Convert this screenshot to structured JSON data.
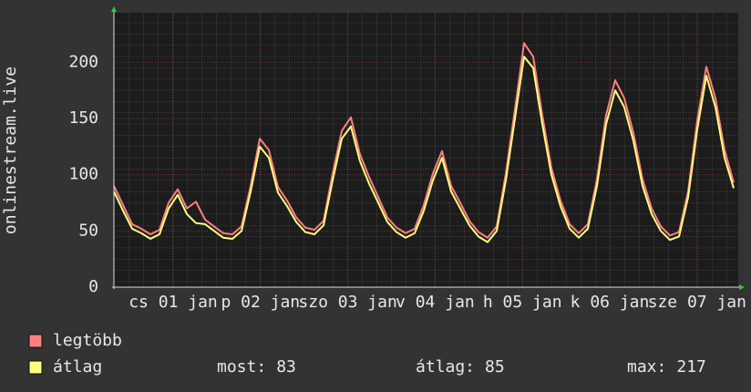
{
  "chart_data": {
    "type": "line",
    "y_label": "onlinestream.live",
    "ylim": [
      0,
      244
    ],
    "yticks": [
      0,
      50,
      100,
      150,
      200
    ],
    "xlim": [
      0,
      68.5
    ],
    "xticks": [
      {
        "value": 6.5,
        "label": "cs 01 jan"
      },
      {
        "value": 16.08,
        "label": "p 02 jan"
      },
      {
        "value": 25.66,
        "label": "szo 03 jan"
      },
      {
        "value": 35.24,
        "label": "v 04 jan"
      },
      {
        "value": 44.82,
        "label": "h 05 jan"
      },
      {
        "value": 54.4,
        "label": "k 06 jan"
      },
      {
        "value": 63.98,
        "label": "sze 07 jan"
      }
    ],
    "grid": true,
    "series": [
      {
        "name": "legtöbb",
        "color": "#ff8080",
        "values": [
          90,
          73,
          56,
          52,
          47,
          51,
          75,
          87,
          70,
          76,
          60,
          54,
          48,
          47,
          54,
          90,
          132,
          122,
          89,
          77,
          62,
          53,
          51,
          59,
          101,
          139,
          151,
          118,
          98,
          80,
          62,
          53,
          48,
          52,
          73,
          101,
          121,
          90,
          75,
          59,
          49,
          44,
          54,
          101,
          158,
          217,
          205,
          153,
          106,
          77,
          56,
          48,
          56,
          96,
          153,
          184,
          168,
          137,
          96,
          70,
          54,
          46,
          49,
          85,
          148,
          196,
          168,
          122,
          93
        ]
      },
      {
        "name": "átlag",
        "color": "#ffff80",
        "values": [
          85,
          68,
          52,
          48,
          43,
          47,
          70,
          82,
          65,
          57,
          56,
          50,
          44,
          43,
          50,
          85,
          125,
          115,
          84,
          72,
          58,
          49,
          47,
          55,
          95,
          132,
          143,
          112,
          92,
          75,
          58,
          49,
          44,
          48,
          68,
          95,
          115,
          85,
          70,
          55,
          45,
          40,
          50,
          95,
          150,
          205,
          195,
          145,
          100,
          72,
          52,
          44,
          52,
          90,
          145,
          175,
          160,
          130,
          90,
          65,
          50,
          42,
          45,
          80,
          140,
          188,
          160,
          115,
          88
        ]
      }
    ],
    "stats": [
      {
        "label": "most:",
        "value": 83
      },
      {
        "label": "átlag:",
        "value": 85
      },
      {
        "label": "max:",
        "value": 217
      }
    ]
  }
}
